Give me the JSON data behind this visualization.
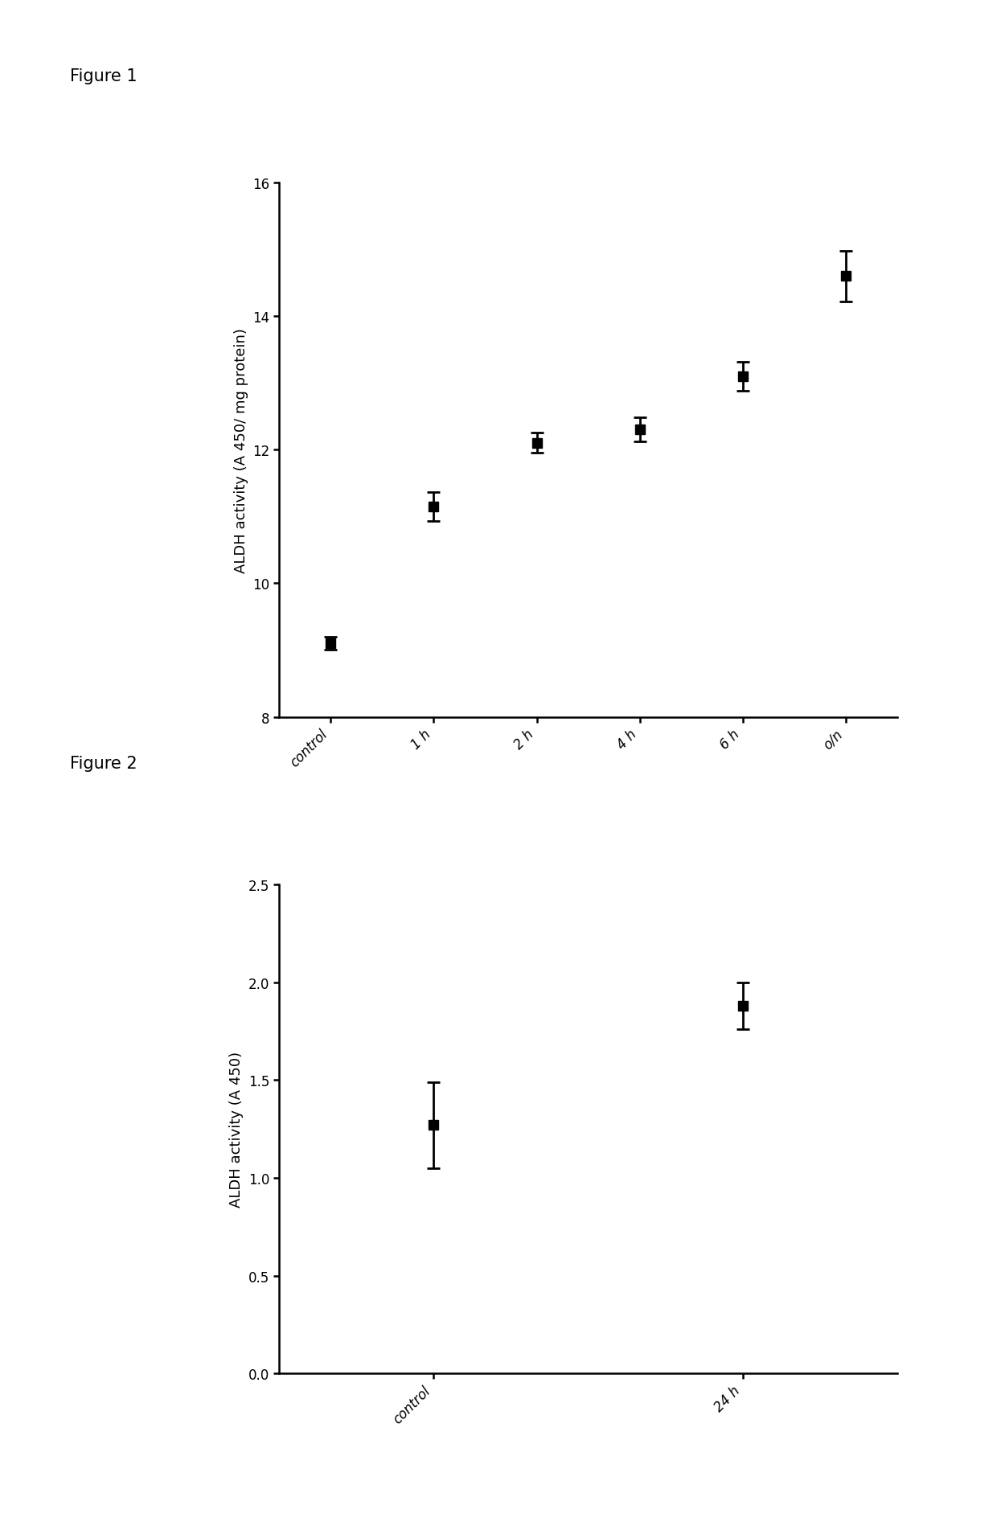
{
  "fig1": {
    "categories": [
      "control",
      "1 h",
      "2 h",
      "4 h",
      "6 h",
      "o/n"
    ],
    "values": [
      9.1,
      11.15,
      12.1,
      12.3,
      13.1,
      14.6
    ],
    "errors": [
      0.1,
      0.22,
      0.15,
      0.18,
      0.22,
      0.38
    ],
    "ylabel": "ALDH activity (A 450/ mg protein)",
    "ylim": [
      8,
      16
    ],
    "yticks": [
      8,
      10,
      12,
      14,
      16
    ],
    "marker_size": 9,
    "cap_size": 6,
    "label": "Figure 1"
  },
  "fig2": {
    "categories": [
      "control",
      "24 h"
    ],
    "values": [
      1.27,
      1.88
    ],
    "errors": [
      0.22,
      0.12
    ],
    "ylabel": "ALDH activity (A 450)",
    "ylim": [
      0.0,
      2.5
    ],
    "yticks": [
      0.0,
      0.5,
      1.0,
      1.5,
      2.0,
      2.5
    ],
    "marker_size": 9,
    "cap_size": 6,
    "label": "Figure 2"
  },
  "background_color": "#ffffff",
  "marker_color": "#000000",
  "label_font_size": 13,
  "tick_font_size": 12,
  "figure_label_font_size": 15
}
